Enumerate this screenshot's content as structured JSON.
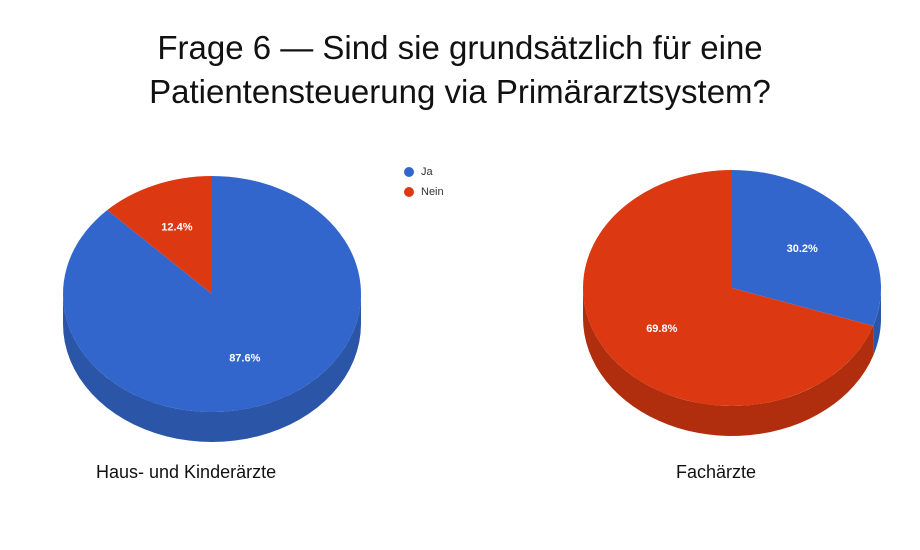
{
  "title_line1": "Frage 6 — Sind sie grundsätzlich für eine",
  "title_line2": "Patientensteuerung via Primärarztsystem?",
  "colors": {
    "ja": "#3366CC",
    "nein": "#DC3912",
    "ja_side": "#2B56A8",
    "nein_side": "#B02E0E",
    "label": "#FFFFFF"
  },
  "legend": [
    {
      "label": "Ja",
      "color": "#3366CC"
    },
    {
      "label": "Nein",
      "color": "#DC3912"
    }
  ],
  "chart_data": [
    {
      "type": "pie",
      "caption": "Haus- und Kinderärzte",
      "categories": [
        "Ja",
        "Nein"
      ],
      "values": [
        87.6,
        12.4
      ],
      "labels": [
        "87.6%",
        "12.4%"
      ]
    },
    {
      "type": "pie",
      "caption": "Fachärzte",
      "categories": [
        "Ja",
        "Nein"
      ],
      "values": [
        30.2,
        69.8
      ],
      "labels": [
        "30.2%",
        "69.8%"
      ]
    }
  ]
}
